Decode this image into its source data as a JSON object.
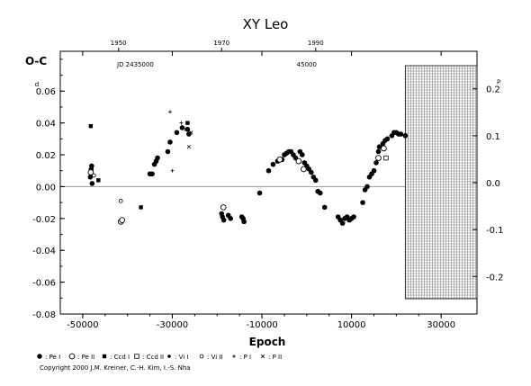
{
  "chart_data": {
    "type": "scatter",
    "title": "XY Leo",
    "xlabel": "Epoch",
    "ylabel": "O-C",
    "xlim": [
      -55000,
      38000
    ],
    "ylim": [
      -0.08,
      0.085
    ],
    "y2lim": [
      -0.28,
      0.28
    ],
    "x_ticks": [
      "-50000",
      "-30000",
      "-10000",
      "10000",
      "30000"
    ],
    "y_ticks": [
      "-0.08",
      "-0.06",
      "-0.04",
      "-0.02",
      "0.00",
      "0.02",
      "0.04",
      "0.06"
    ],
    "y2_ticks": [
      "-0.2",
      "-0.1",
      "0.0",
      "0.1",
      "0.2"
    ],
    "top_axis_ticks": [
      "1950",
      "1970",
      "1990"
    ],
    "top_axis_positions": [
      -42000,
      -19000,
      2000
    ],
    "top_axis_label": "JD 2435000",
    "top_axis_label_right": "45000",
    "top_axis_label_right_x": 0,
    "y_exponent": "d",
    "y2_exponent": "P",
    "grid_on": false,
    "legend_placement": "bottom",
    "future_region_start": 22000,
    "series": [
      {
        "symbol": "filled-circle",
        "values": [
          [
            -48000,
            0.013
          ],
          [
            -48100,
            0.011
          ],
          [
            -48300,
            0.006
          ],
          [
            -47900,
            0.002
          ],
          [
            -35000,
            0.008
          ],
          [
            -34500,
            0.008
          ],
          [
            -34000,
            0.014
          ],
          [
            -33600,
            0.016
          ],
          [
            -33300,
            0.018
          ],
          [
            -31000,
            0.022
          ],
          [
            -30500,
            0.028
          ],
          [
            -29000,
            0.034
          ],
          [
            -27800,
            0.037
          ],
          [
            -26600,
            0.036
          ],
          [
            -26300,
            0.033
          ],
          [
            -19000,
            -0.017
          ],
          [
            -18800,
            -0.019
          ],
          [
            -18500,
            -0.021
          ],
          [
            -17500,
            -0.018
          ],
          [
            -17000,
            -0.02
          ],
          [
            -14500,
            -0.019
          ],
          [
            -14200,
            -0.02
          ],
          [
            -14000,
            -0.022
          ],
          [
            -10500,
            -0.004
          ],
          [
            -8500,
            0.01
          ],
          [
            -7500,
            0.014
          ],
          [
            -6500,
            0.016
          ],
          [
            -5500,
            0.017
          ],
          [
            -5000,
            0.02
          ],
          [
            -4500,
            0.021
          ],
          [
            -4000,
            0.022
          ],
          [
            -3500,
            0.022
          ],
          [
            -3000,
            0.02
          ],
          [
            -2500,
            0.018
          ],
          [
            -1500,
            0.022
          ],
          [
            -1000,
            0.02
          ],
          [
            -500,
            0.015
          ],
          [
            0,
            0.013
          ],
          [
            500,
            0.011
          ],
          [
            1000,
            0.009
          ],
          [
            1500,
            0.006
          ],
          [
            2000,
            0.004
          ],
          [
            2500,
            -0.003
          ],
          [
            3000,
            -0.004
          ],
          [
            4000,
            -0.013
          ],
          [
            7000,
            -0.019
          ],
          [
            7500,
            -0.021
          ],
          [
            8000,
            -0.023
          ],
          [
            8500,
            -0.02
          ],
          [
            9000,
            -0.019
          ],
          [
            9500,
            -0.021
          ],
          [
            10000,
            -0.02
          ],
          [
            10500,
            -0.019
          ],
          [
            12500,
            -0.01
          ],
          [
            13000,
            -0.002
          ],
          [
            13500,
            0.0
          ],
          [
            14000,
            0.006
          ],
          [
            14500,
            0.008
          ],
          [
            15000,
            0.01
          ],
          [
            15500,
            0.015
          ],
          [
            16000,
            0.022
          ],
          [
            16200,
            0.025
          ],
          [
            17000,
            0.027
          ],
          [
            17500,
            0.029
          ],
          [
            18000,
            0.03
          ],
          [
            19000,
            0.032
          ],
          [
            19500,
            0.034
          ],
          [
            20000,
            0.034
          ],
          [
            20500,
            0.033
          ],
          [
            21000,
            0.033
          ],
          [
            22000,
            0.032
          ]
        ]
      },
      {
        "symbol": "open-circle",
        "values": [
          [
            -48200,
            0.009
          ],
          [
            -41500,
            -0.022
          ],
          [
            -41200,
            -0.021
          ],
          [
            -18600,
            -0.013
          ],
          [
            -6000,
            0.017
          ],
          [
            -1800,
            0.016
          ],
          [
            -700,
            0.011
          ],
          [
            16000,
            0.018
          ],
          [
            17200,
            0.024
          ]
        ]
      },
      {
        "symbol": "filled-square",
        "values": [
          [
            -48200,
            0.038
          ],
          [
            -46500,
            0.004
          ],
          [
            -37000,
            -0.013
          ],
          [
            -26600,
            0.04
          ]
        ]
      },
      {
        "symbol": "open-square",
        "values": [
          [
            17700,
            0.018
          ]
        ]
      },
      {
        "symbol": "open-circle-small",
        "values": [
          [
            -41500,
            -0.009
          ],
          [
            -47500,
            0.007
          ]
        ]
      },
      {
        "symbol": "plus",
        "values": [
          [
            -30500,
            0.047
          ],
          [
            -30000,
            0.01
          ],
          [
            -28000,
            0.04
          ]
        ]
      },
      {
        "symbol": "cross",
        "values": [
          [
            -26300,
            0.025
          ],
          [
            -27000,
            0.036
          ],
          [
            -25800,
            0.034
          ]
        ]
      }
    ]
  },
  "legend": [
    {
      "symbol": "filled-circle",
      "label": ": Pe I"
    },
    {
      "symbol": "open-circle",
      "label": ": Pe II"
    },
    {
      "symbol": "filled-square",
      "label": ": Ccd I"
    },
    {
      "symbol": "open-square",
      "label": ": Ccd II"
    },
    {
      "symbol": "filled-circle-small",
      "label": ": Vi I"
    },
    {
      "symbol": "open-circle-small",
      "label": ": Vi II"
    },
    {
      "symbol": "plus",
      "label": ": P I"
    },
    {
      "symbol": "cross",
      "label": ": P II"
    }
  ],
  "copyright": "Copyright 2000 J.M. Kreiner, C.-H. Kim, I.-S. Nha"
}
